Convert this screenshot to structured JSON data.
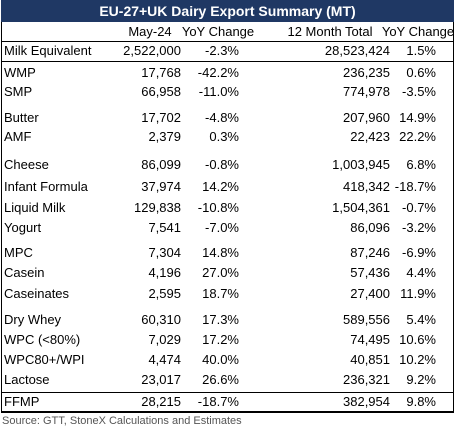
{
  "header": {
    "title": "EU-27+UK Dairy Export Summary (MT)"
  },
  "table": {
    "columns": [
      "May-24",
      "YoY Change",
      "12 Month Total",
      "YoY Change"
    ],
    "rows": [
      [
        "Milk Equivalent",
        "2,522,000",
        "-2.3%",
        "28,523,424",
        "1.5%"
      ],
      [
        "WMP",
        "17,768",
        "-42.2%",
        "236,235",
        "0.6%"
      ],
      [
        "SMP",
        "66,958",
        "-11.0%",
        "774,978",
        "-3.5%"
      ],
      [
        "Butter",
        "17,702",
        "-4.8%",
        "207,960",
        "14.9%"
      ],
      [
        "AMF",
        "2,379",
        "0.3%",
        "22,423",
        "22.2%"
      ],
      [
        "Cheese",
        "86,099",
        "-0.8%",
        "1,003,945",
        "6.8%"
      ],
      [
        "Infant Formula",
        "37,974",
        "14.2%",
        "418,342",
        "-18.7%"
      ],
      [
        "Liquid Milk",
        "129,838",
        "-10.8%",
        "1,504,361",
        "-0.7%"
      ],
      [
        "Yogurt",
        "7,541",
        "-7.0%",
        "86,096",
        "-3.2%"
      ],
      [
        "MPC",
        "7,304",
        "14.8%",
        "87,246",
        "-6.9%"
      ],
      [
        "Casein",
        "4,196",
        "27.0%",
        "57,436",
        "4.4%"
      ],
      [
        "Caseinates",
        "2,595",
        "18.7%",
        "27,400",
        "11.9%"
      ],
      [
        "Dry Whey",
        "60,310",
        "17.3%",
        "589,556",
        "5.4%"
      ],
      [
        "WPC (<80%)",
        "7,029",
        "17.2%",
        "74,495",
        "10.6%"
      ],
      [
        "WPC80+/WPI",
        "4,474",
        "40.0%",
        "40,851",
        "10.2%"
      ],
      [
        "Lactose",
        "23,017",
        "26.6%",
        "236,321",
        "9.2%"
      ],
      [
        "FFMP",
        "28,215",
        "-18.7%",
        "382,954",
        "9.8%"
      ]
    ]
  },
  "footer": {
    "source": "Source: GTT, StoneX Calculations and Estimates"
  }
}
